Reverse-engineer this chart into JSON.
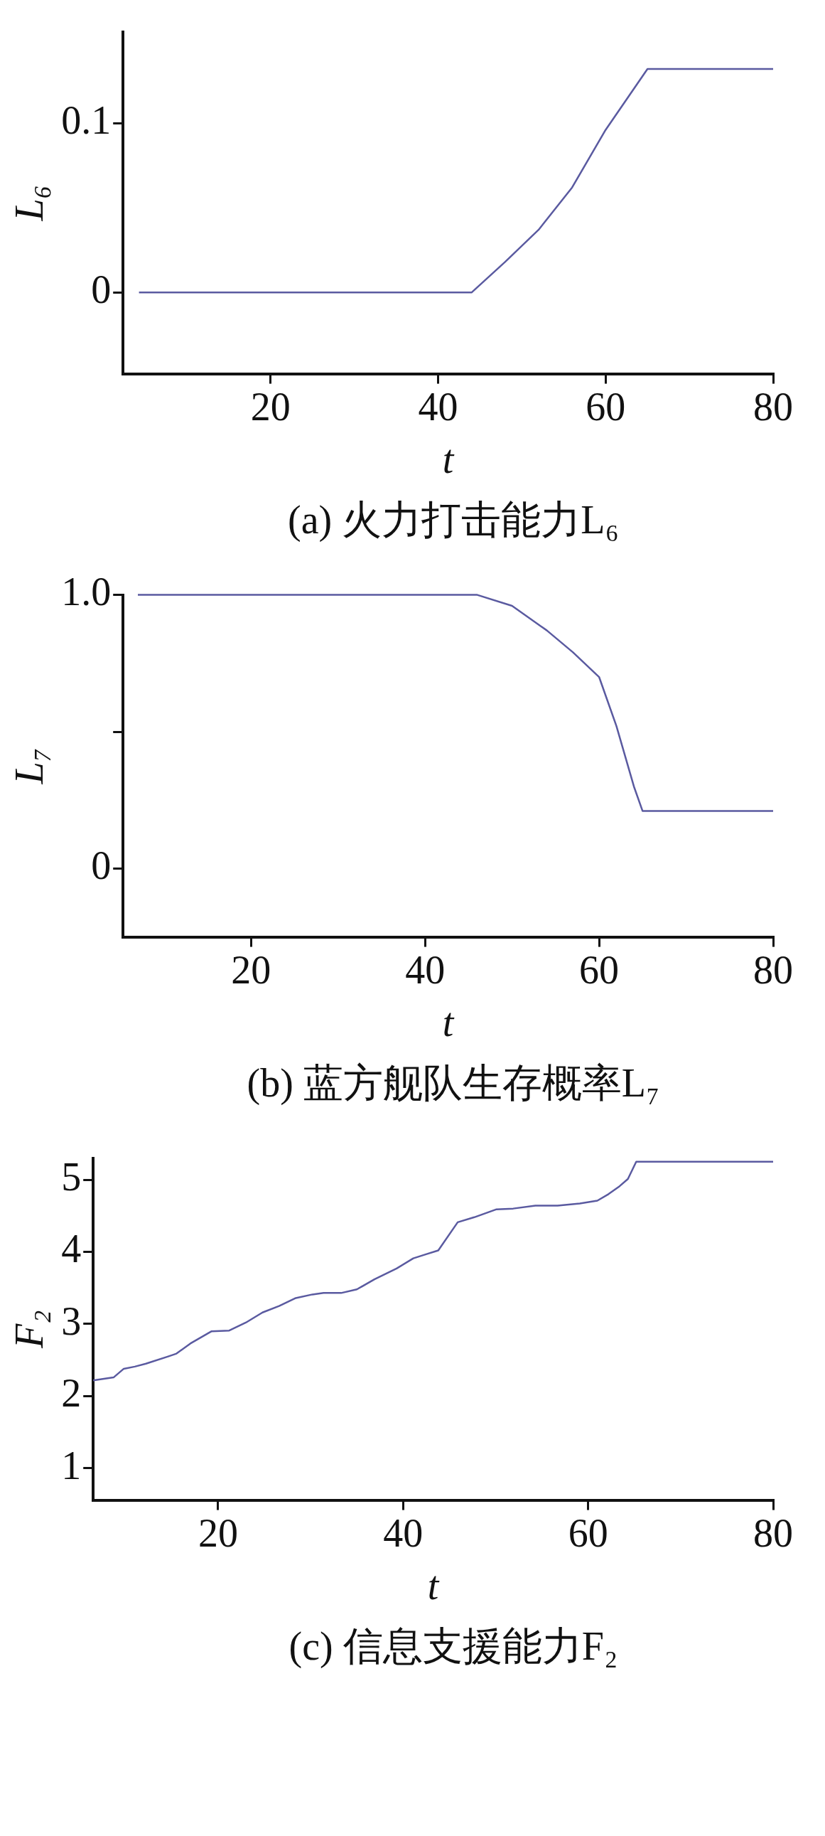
{
  "chart_data": [
    {
      "type": "line",
      "title": "(a) 火力打击能力L₆",
      "xlabel": "t",
      "ylabel": "L₆",
      "x": [
        4.3,
        44,
        48,
        52,
        56,
        60,
        65,
        80
      ],
      "series": [
        {
          "color": "#5a5aa0",
          "values": [
            0,
            0,
            0.018,
            0.037,
            0.062,
            0.096,
            0.132,
            0.132
          ]
        }
      ],
      "xlim": [
        2.4,
        80
      ],
      "xticks": [
        20,
        40,
        60,
        80
      ],
      "ylim": [
        -0.048,
        0.154
      ],
      "yticks": [
        0,
        0.1
      ],
      "grid": false,
      "legend": false,
      "marker": "none",
      "line_style": "solid"
    },
    {
      "type": "line",
      "title": "(b) 蓝方舰队生存概率L₇",
      "xlabel": "t",
      "ylabel": "L₇",
      "x": [
        7,
        46,
        50,
        54,
        57,
        60,
        62,
        64,
        65,
        80
      ],
      "series": [
        {
          "color": "#5a5aa0",
          "values": [
            1,
            1,
            0.96,
            0.87,
            0.79,
            0.7,
            0.52,
            0.3,
            0.21,
            0.21
          ]
        }
      ],
      "xlim": [
        5.3,
        80
      ],
      "xticks": [
        20,
        40,
        60,
        80
      ],
      "ylim": [
        -0.25,
        1.0
      ],
      "yticks": [
        0,
        {
          "value": 0.5,
          "label": null
        },
        {
          "value": 1,
          "label": "1.0"
        }
      ],
      "grid": false,
      "legend": false,
      "marker": "none",
      "line_style": "solid"
    },
    {
      "type": "line",
      "title": "(c) 信息支援能力F₂",
      "xlabel": "t",
      "ylabel": "F₂",
      "x": [
        6.5,
        8.7,
        9.8,
        11,
        12.2,
        14.6,
        15.5,
        17,
        19.3,
        21.2,
        23,
        24.8,
        26.6,
        28.4,
        30.2,
        31.4,
        33.3,
        35,
        36.9,
        39.3,
        41.1,
        42.3,
        43.8,
        45.9,
        47.7,
        50.1,
        51.9,
        54.3,
        56.7,
        59.1,
        61,
        62.2,
        63.4,
        64.3,
        65.2,
        80
      ],
      "series": [
        {
          "color": "#5a5aa0",
          "values": [
            2.22,
            2.26,
            2.38,
            2.41,
            2.45,
            2.55,
            2.59,
            2.73,
            2.9,
            2.91,
            3.02,
            3.16,
            3.25,
            3.36,
            3.41,
            3.43,
            3.43,
            3.48,
            3.62,
            3.77,
            3.91,
            3.96,
            4.02,
            4.41,
            4.48,
            4.59,
            4.6,
            4.64,
            4.64,
            4.67,
            4.71,
            4.8,
            4.91,
            5.01,
            5.25,
            5.25
          ]
        }
      ],
      "xlim": [
        6.5,
        80
      ],
      "xticks": [
        20,
        40,
        60,
        80
      ],
      "ylim": [
        0.56,
        5.3
      ],
      "yticks": [
        1,
        2,
        3,
        4,
        5
      ],
      "grid": false,
      "legend": false,
      "marker": "none",
      "line_style": "solid"
    }
  ]
}
